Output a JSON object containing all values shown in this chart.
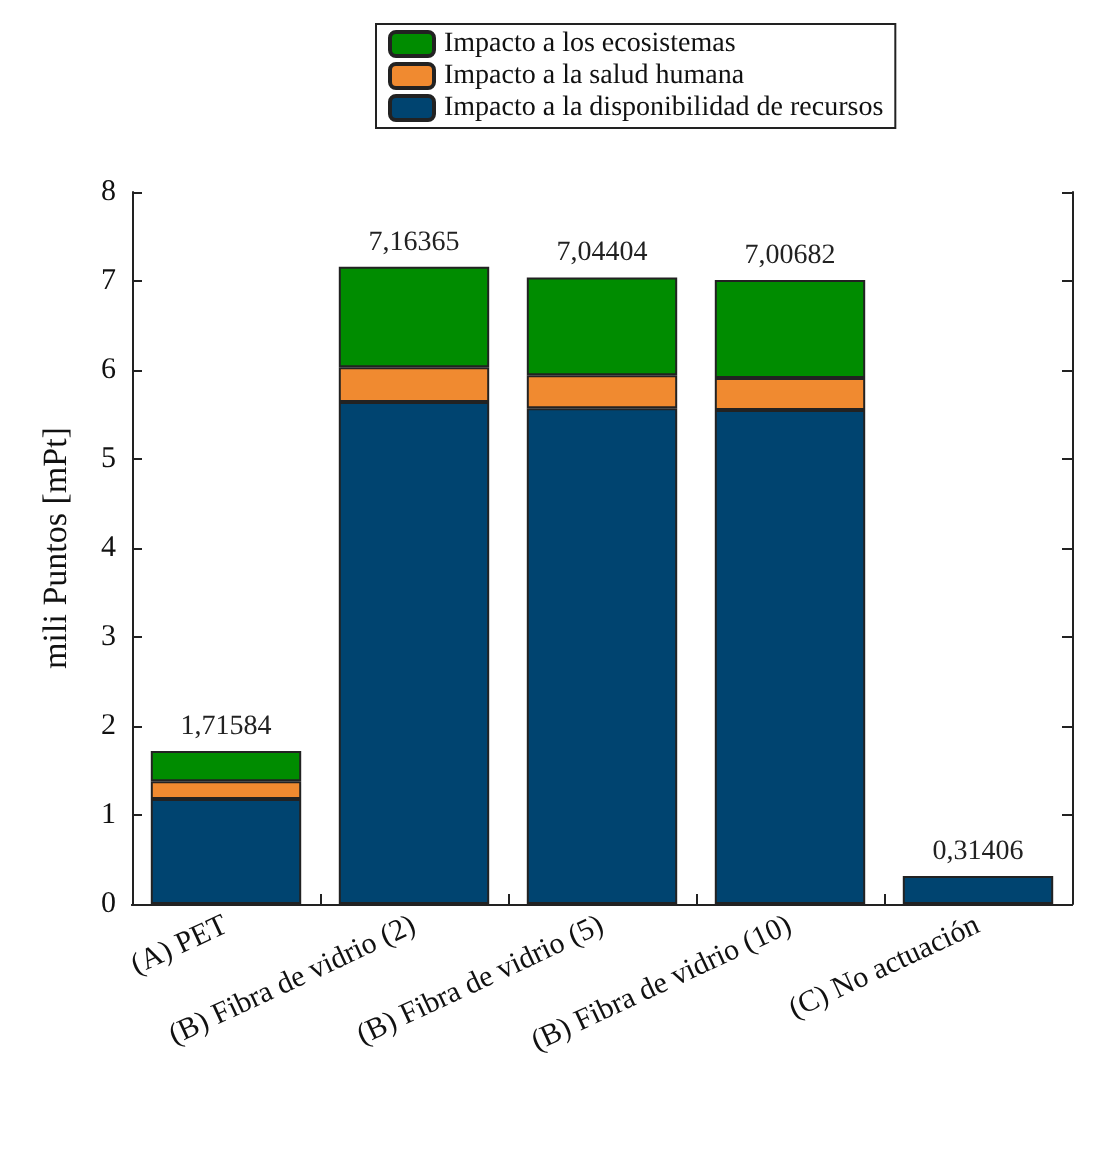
{
  "chart_data": {
    "type": "bar",
    "stacked": true,
    "ylabel": "mili Puntos [mPt]",
    "categories": [
      "(A) PET",
      "(B) Fibra de vidrio (2)",
      "(B) Fibra de vidrio (5)",
      "(B) Fibra de vidrio (10)",
      "(C) No actuación"
    ],
    "series": [
      {
        "name": "Impacto a la disponibilidad de recursos",
        "color": "#004470",
        "values": [
          1.18,
          5.64,
          5.57,
          5.55,
          0.31406
        ]
      },
      {
        "name": "Impacto a la salud humana",
        "color": "#f08a30",
        "values": [
          0.2,
          0.39,
          0.37,
          0.36,
          null
        ]
      },
      {
        "name": "Impacto a los ecosistemas",
        "color": "#008c00",
        "values": [
          0.34,
          1.13,
          1.1,
          1.1,
          null
        ]
      }
    ],
    "totals": [
      "1,71584",
      "7,16365",
      "7,04404",
      "7,00682",
      "0,31406"
    ],
    "ylim": [
      0,
      8
    ],
    "yticks": [
      0,
      1,
      2,
      3,
      4,
      5,
      6,
      7,
      8
    ],
    "grid": false,
    "legend": "top"
  }
}
